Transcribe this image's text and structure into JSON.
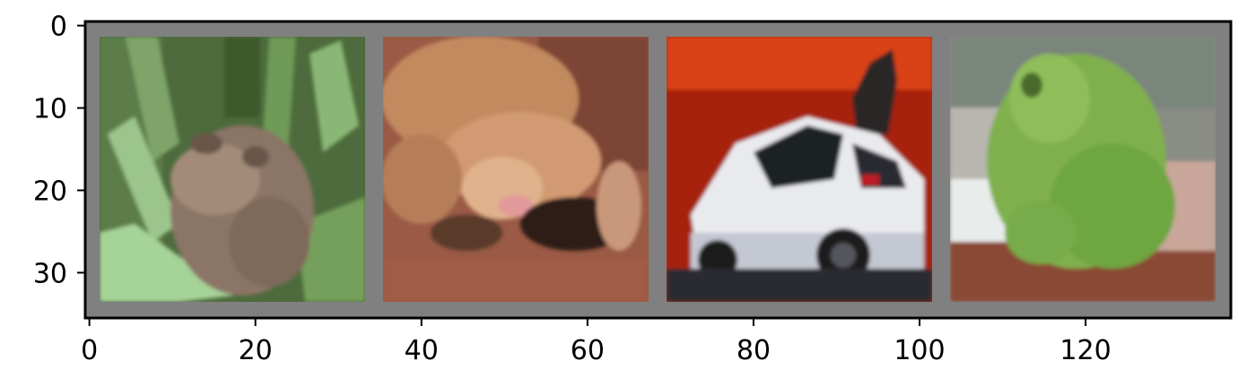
{
  "image_grid": {
    "panels": [
      {
        "label": "frog"
      },
      {
        "label": "frog"
      },
      {
        "label": "car"
      },
      {
        "label": "frog"
      }
    ],
    "grid_color": "#808080"
  },
  "axes": {
    "x_ticks": [
      "0",
      "20",
      "40",
      "60",
      "80",
      "100",
      "120"
    ],
    "y_ticks": [
      "0",
      "10",
      "20",
      "30"
    ],
    "xlim": [
      -0.5,
      137.5
    ],
    "ylim": [
      35.5,
      -0.5
    ]
  }
}
